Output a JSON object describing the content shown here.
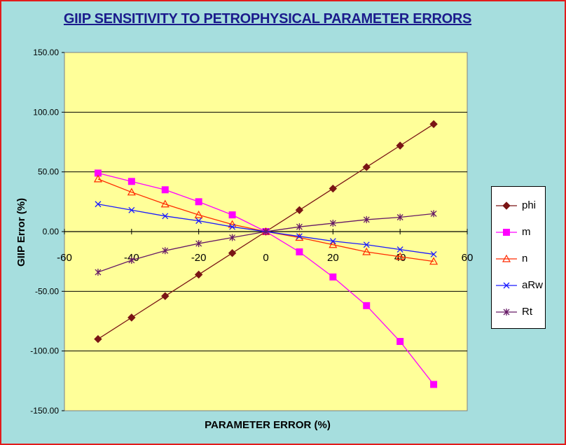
{
  "chart_data": {
    "type": "line",
    "title": "GIIP SENSITIVITY TO PETROPHYSICAL PARAMETER ERRORS",
    "xlabel": "PARAMETER ERROR (%)",
    "ylabel": "GIIP Error (%)",
    "xlim": [
      -60,
      60
    ],
    "ylim": [
      -150,
      150
    ],
    "x_ticks": [
      "-60",
      "-40",
      "-20",
      "0",
      "20",
      "40",
      "60"
    ],
    "y_ticks": [
      "150.00",
      "100.00",
      "50.00",
      "0.00",
      "-50.00",
      "-100.00",
      "-150.00"
    ],
    "grid": "horizontal",
    "legend_position": "right",
    "x": [
      -50,
      -40,
      -30,
      -20,
      -10,
      0,
      10,
      20,
      30,
      40,
      50
    ],
    "series": [
      {
        "name": "phi",
        "color": "#7a1515",
        "marker": "diamond",
        "values": [
          -90,
          -72,
          -54,
          -36,
          -18,
          0,
          18,
          36,
          54,
          72,
          90
        ]
      },
      {
        "name": "m",
        "color": "#ff00ff",
        "marker": "square",
        "values": [
          49,
          42,
          35,
          25,
          14,
          0,
          -17,
          -38,
          -62,
          -92,
          -128
        ]
      },
      {
        "name": "n",
        "color": "#ff2a00",
        "marker": "triangle",
        "values": [
          44,
          33,
          23,
          14,
          6,
          0,
          -5,
          -11,
          -17,
          -21,
          -25
        ]
      },
      {
        "name": "aRw",
        "color": "#1a1aff",
        "marker": "x",
        "values": [
          23,
          18,
          13,
          9,
          4,
          0,
          -4,
          -8,
          -11,
          -15,
          -19
        ]
      },
      {
        "name": "Rt",
        "color": "#661a66",
        "marker": "star",
        "values": [
          -34,
          -24,
          -16,
          -10,
          -5,
          0,
          4,
          7,
          10,
          12,
          15
        ]
      }
    ]
  }
}
